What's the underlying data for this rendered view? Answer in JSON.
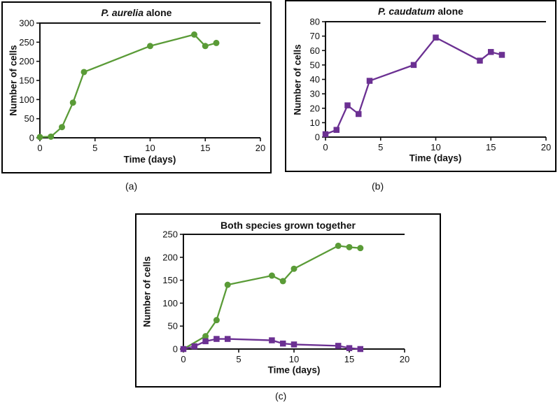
{
  "figure": {
    "panel_labels": {
      "a": "(a)",
      "b": "(b)",
      "c": "(c)"
    }
  },
  "colors": {
    "aurelia_green": "#5a9b37",
    "caudatum_purple": "#6b3092",
    "axis": "#111111"
  },
  "chart_data": [
    {
      "id": "a",
      "type": "line",
      "title_italic": "P. aurelia",
      "title_rest": " alone",
      "xlabel": "Time (days)",
      "ylabel": "Number of cells",
      "xlim": [
        0,
        20
      ],
      "ylim": [
        0,
        300
      ],
      "x_ticks": [
        0,
        5,
        10,
        15,
        20
      ],
      "y_ticks": [
        0,
        50,
        100,
        150,
        200,
        250,
        300
      ],
      "grid": false,
      "legend": "none",
      "series": [
        {
          "name": "P. aurelia",
          "marker": "circle",
          "color": "#5a9b37",
          "x": [
            0,
            1,
            2,
            3,
            4,
            10,
            14,
            15,
            16
          ],
          "y": [
            2,
            3,
            28,
            92,
            172,
            240,
            270,
            240,
            248
          ]
        }
      ]
    },
    {
      "id": "b",
      "type": "line",
      "title_italic": "P. caudatum",
      "title_rest": " alone",
      "xlabel": "Time (days)",
      "ylabel": "Number of cells",
      "xlim": [
        0,
        20
      ],
      "ylim": [
        0,
        80
      ],
      "x_ticks": [
        0,
        5,
        10,
        15,
        20
      ],
      "y_ticks": [
        0,
        10,
        20,
        30,
        40,
        50,
        60,
        70,
        80
      ],
      "grid": false,
      "legend": "none",
      "series": [
        {
          "name": "P. caudatum",
          "marker": "square",
          "color": "#6b3092",
          "x": [
            0,
            1,
            2,
            3,
            4,
            8,
            10,
            14,
            15,
            16
          ],
          "y": [
            2,
            5,
            22,
            16,
            39,
            50,
            69,
            53,
            59,
            57
          ]
        }
      ]
    },
    {
      "id": "c",
      "type": "line",
      "title_italic": "",
      "title_rest": "Both species grown together",
      "xlabel": "Time (days)",
      "ylabel": "Number of cells",
      "xlim": [
        0,
        20
      ],
      "ylim": [
        0,
        250
      ],
      "x_ticks": [
        0,
        5,
        10,
        15,
        20
      ],
      "y_ticks": [
        0,
        50,
        100,
        150,
        200,
        250
      ],
      "grid": false,
      "legend": "none",
      "series": [
        {
          "name": "P. aurelia",
          "marker": "circle",
          "color": "#5a9b37",
          "x": [
            0,
            2,
            3,
            4,
            8,
            9,
            10,
            14,
            15,
            16
          ],
          "y": [
            0,
            28,
            63,
            140,
            160,
            148,
            175,
            225,
            222,
            220
          ]
        },
        {
          "name": "P. caudatum",
          "marker": "square",
          "color": "#6b3092",
          "x": [
            0,
            1,
            2,
            3,
            4,
            8,
            9,
            10,
            14,
            15,
            16
          ],
          "y": [
            0,
            6,
            17,
            22,
            22,
            19,
            12,
            10,
            7,
            2,
            0
          ]
        }
      ]
    }
  ]
}
